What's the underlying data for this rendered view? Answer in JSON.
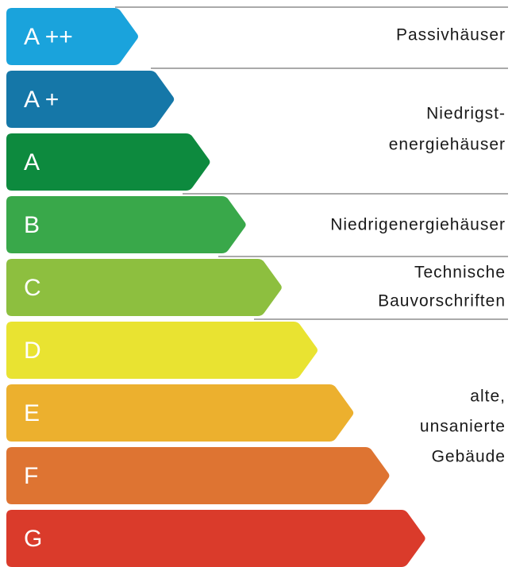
{
  "classes": [
    {
      "label": "A ++",
      "color": "#1aa3dc"
    },
    {
      "label": "A +",
      "color": "#1577a8"
    },
    {
      "label": "A",
      "color": "#0d8a3e"
    },
    {
      "label": "B",
      "color": "#39a84a"
    },
    {
      "label": "C",
      "color": "#8dbf3f"
    },
    {
      "label": "D",
      "color": "#e9e331"
    },
    {
      "label": "E",
      "color": "#ecb02e"
    },
    {
      "label": "F",
      "color": "#de7432"
    },
    {
      "label": "G",
      "color": "#da3b2b"
    }
  ],
  "groups": [
    {
      "lines": [
        "Passivhäuser"
      ]
    },
    {
      "lines": [
        "Niedrigst-",
        "energiehäuser"
      ]
    },
    {
      "lines": [
        "Niedrigenergiehäuser"
      ]
    },
    {
      "lines": [
        "Technische",
        "Bauvorschriften"
      ]
    },
    {
      "lines": [
        "alte,",
        "unsanierte",
        "Gebäude"
      ]
    }
  ]
}
